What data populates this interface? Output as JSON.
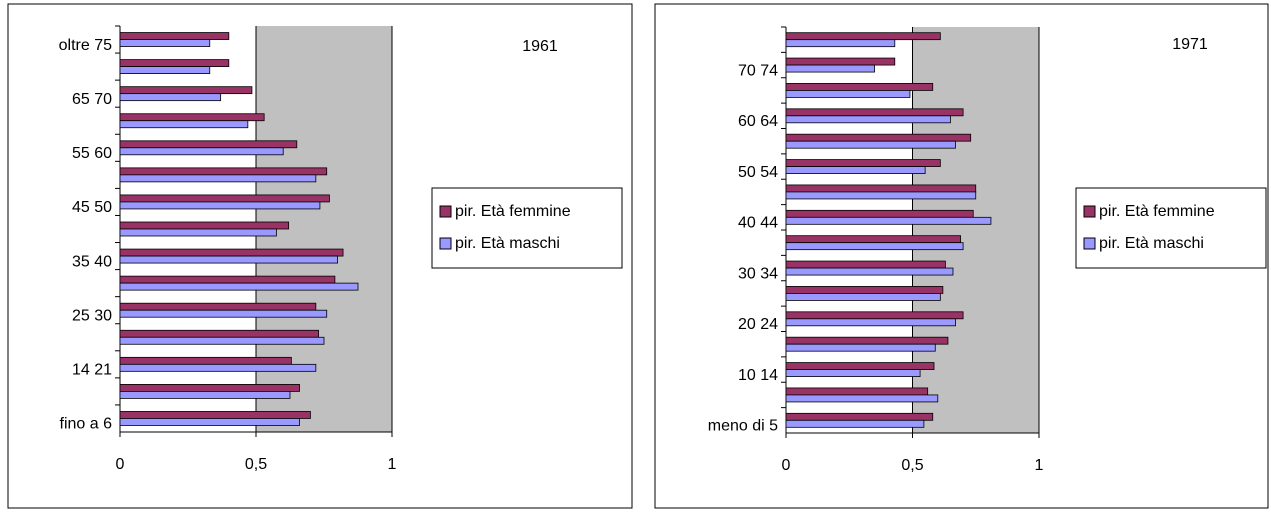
{
  "chart_data": [
    {
      "type": "barh",
      "title": "1961",
      "categories": [
        "fino a 6",
        null,
        "14 21",
        null,
        "25 30",
        null,
        "35 40",
        null,
        "45 50",
        null,
        "55 60",
        null,
        "65 70",
        null,
        "oltre 75"
      ],
      "series": [
        {
          "name": "pir. Età femmine",
          "color": "#993366",
          "values": [
            0.7,
            0.66,
            0.63,
            0.73,
            0.72,
            0.79,
            0.82,
            0.62,
            0.77,
            0.76,
            0.65,
            0.53,
            0.485,
            0.4,
            0.4
          ]
        },
        {
          "name": "pir. Età maschi",
          "color": "#9999ff",
          "values": [
            0.66,
            0.625,
            0.72,
            0.75,
            0.76,
            0.875,
            0.8,
            0.575,
            0.735,
            0.72,
            0.6,
            0.47,
            0.37,
            0.33,
            0.33
          ]
        }
      ],
      "xlim": [
        0,
        1
      ],
      "xticks": [
        0,
        {
          "value": 0.5,
          "label": "0,5"
        },
        1
      ],
      "legend": "right"
    },
    {
      "type": "barh",
      "title": "1971",
      "categories": [
        "meno di 5",
        null,
        "10 14",
        null,
        "20 24",
        null,
        "30 34",
        null,
        "40 44",
        null,
        "50 54",
        null,
        "60 64",
        null,
        "70 74",
        null
      ],
      "series": [
        {
          "name": "pir. Età femmine",
          "color": "#993366",
          "values": [
            0.58,
            0.56,
            0.585,
            0.64,
            0.7,
            0.62,
            0.63,
            0.69,
            0.74,
            0.75,
            0.61,
            0.73,
            0.7,
            0.58,
            0.43,
            0.61
          ]
        },
        {
          "name": "pir. Età maschi",
          "color": "#9999ff",
          "values": [
            0.545,
            0.6,
            0.53,
            0.59,
            0.67,
            0.61,
            0.66,
            0.7,
            0.81,
            0.75,
            0.55,
            0.67,
            0.65,
            0.49,
            0.35,
            0.43
          ]
        }
      ],
      "xlim": [
        0,
        1
      ],
      "xticks": [
        0,
        {
          "value": 0.5,
          "label": "0,5"
        },
        1
      ],
      "legend": "right"
    }
  ]
}
